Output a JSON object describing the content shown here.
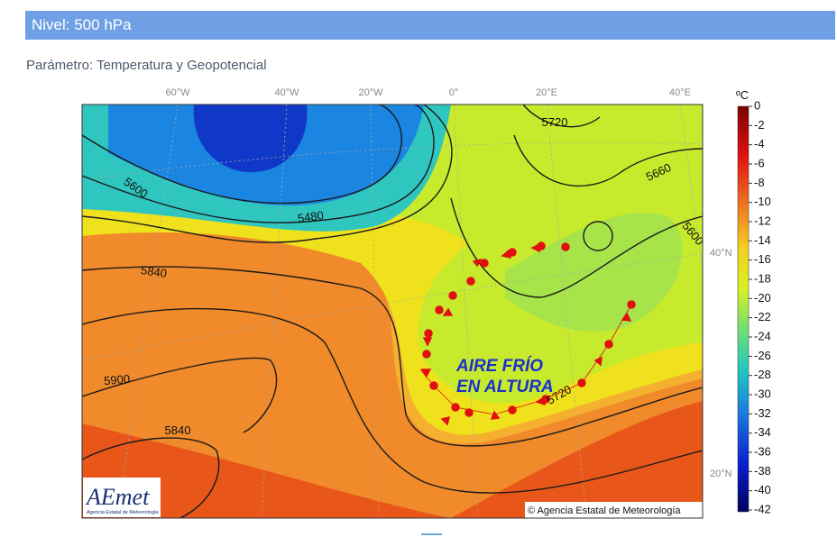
{
  "header": {
    "title": "Nivel: 500 hPa"
  },
  "subtitle": "Parámetro: Temperatura y Geopotencial",
  "map": {
    "lon_labels": [
      "60°W",
      "40°W",
      "20°W",
      "0°",
      "20°E",
      "40°E"
    ],
    "lat_labels": [
      "40°N",
      "20°N"
    ],
    "contour_labels": [
      "5720",
      "5660",
      "5600",
      "5600",
      "5480",
      "5840",
      "5900",
      "5840",
      "5720"
    ],
    "annotation": [
      "AIRE FRÍO",
      "EN ALTURA"
    ],
    "copyright": "© Agencia Estatal de Meteorología",
    "logo": {
      "name": "AEmet",
      "subtitle": "Agencia Estatal de Meteorología"
    }
  },
  "colorbar": {
    "unit": "ºC",
    "lim": [
      0,
      -42
    ],
    "ticks": [
      0,
      -2,
      -4,
      -6,
      -8,
      -10,
      -12,
      -14,
      -16,
      -18,
      -20,
      -22,
      -24,
      -26,
      -28,
      -30,
      -32,
      -34,
      -36,
      -38,
      -40,
      -42
    ]
  }
}
